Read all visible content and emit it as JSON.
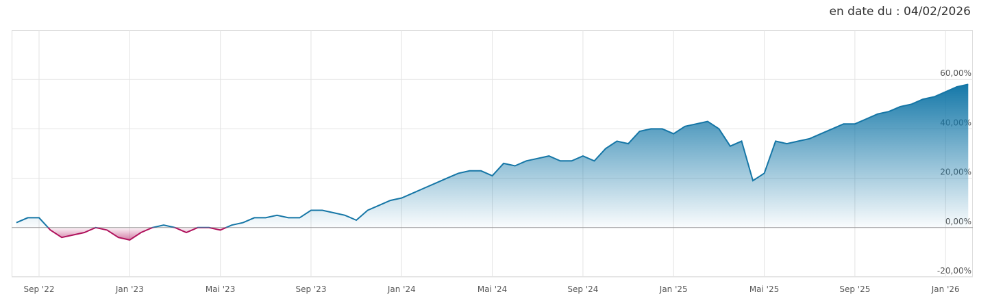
{
  "header": {
    "date_label": "en date du : 04/02/2026"
  },
  "chart_data": {
    "type": "area",
    "categories": [
      "",
      null,
      "Sep '22",
      null,
      null,
      null,
      null,
      null,
      null,
      null,
      "Jan '23",
      null,
      null,
      null,
      null,
      null,
      null,
      null,
      "Mai '23",
      null,
      null,
      null,
      null,
      null,
      null,
      null,
      "Sep '23",
      null,
      null,
      null,
      null,
      null,
      null,
      null,
      "Jan '24",
      null,
      null,
      null,
      null,
      null,
      null,
      null,
      "Mai '24",
      null,
      null,
      null,
      null,
      null,
      null,
      null,
      "Sep '24",
      null,
      null,
      null,
      null,
      null,
      null,
      null,
      "Jan '25",
      null,
      null,
      null,
      null,
      null,
      null,
      null,
      "Mai '25",
      null,
      null,
      null,
      null,
      null,
      null,
      null,
      "Sep '25",
      null,
      null,
      null,
      null,
      null,
      null,
      null,
      "Jan '26",
      null,
      null
    ],
    "series": [
      {
        "color": "#1576a6",
        "negative_color": "#b0135d",
        "values": [
          2,
          4,
          4,
          -1,
          -4,
          -3,
          -2,
          0,
          -1,
          -4,
          -5,
          -2,
          0,
          1,
          0,
          -2,
          0,
          0,
          -1,
          1,
          2,
          4,
          4,
          5,
          4,
          4,
          7,
          7,
          6,
          5,
          3,
          7,
          9,
          11,
          12,
          14,
          16,
          18,
          20,
          22,
          23,
          23,
          21,
          26,
          25,
          27,
          28,
          29,
          27,
          27,
          29,
          27,
          32,
          35,
          34,
          39,
          40,
          40,
          38,
          41,
          42,
          43,
          40,
          33,
          35,
          19,
          22,
          35,
          34,
          35,
          36,
          38,
          40,
          42,
          42,
          44,
          46,
          47,
          49,
          50,
          52,
          53,
          55,
          57,
          58
        ]
      }
    ],
    "ylim": [
      -20,
      80
    ],
    "yticks": [
      {
        "value": -20,
        "label": "-20,00%"
      },
      {
        "value": 0,
        "label": "0,00%"
      },
      {
        "value": 20,
        "label": "20,00%"
      },
      {
        "value": 40,
        "label": "40,00%"
      },
      {
        "value": 60,
        "label": "60,00%"
      }
    ],
    "grid": true
  }
}
